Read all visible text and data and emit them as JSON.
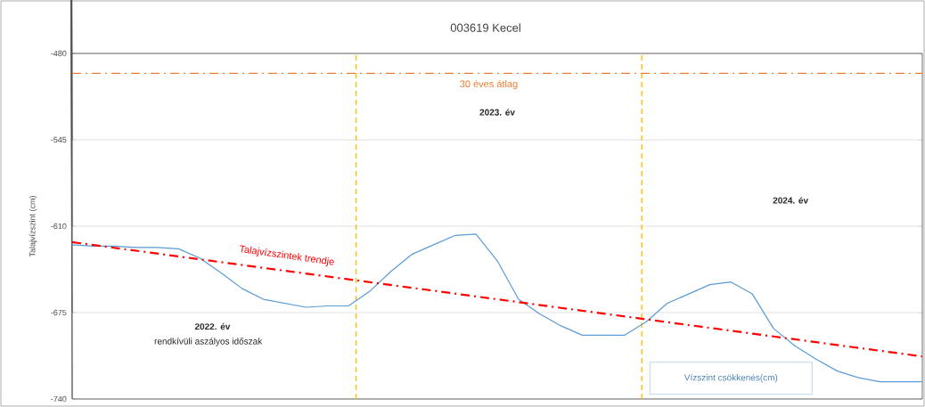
{
  "chart_data": {
    "type": "line",
    "title": "003619 Kecel",
    "ylabel": "Talajvízszint (cm)",
    "categories": [
      null,
      null,
      null,
      null,
      null,
      null,
      null,
      null,
      null,
      null,
      null,
      null,
      null,
      null,
      null,
      null,
      null,
      null,
      null,
      null,
      null,
      null,
      null,
      null,
      null,
      null,
      null,
      null,
      null,
      null,
      null,
      null,
      null,
      null,
      null,
      null,
      null,
      null,
      null,
      null,
      null
    ],
    "ylim": [
      -740,
      -480
    ],
    "yticks": [
      -480,
      -545,
      -610,
      -675,
      -740
    ],
    "grid": "y",
    "series": [
      {
        "name": "Vízszint csökkenés(cm)",
        "color": "#5b9bd5",
        "line_style": "solid",
        "values": [
          -624,
          -625,
          -625,
          -626,
          -626,
          -627,
          -634,
          -645,
          -657,
          -665,
          -668,
          -671,
          -670,
          -670,
          -659,
          -644,
          -631,
          -624,
          -617,
          -616,
          -636,
          -665,
          -676,
          -685,
          -692,
          -692,
          -692,
          -682,
          -668,
          -661,
          -654,
          -652,
          -661,
          -687,
          -700,
          -710,
          -719,
          -724,
          -727,
          -727,
          -727
        ]
      },
      {
        "name": "Talajvízszintek trendje",
        "type": "line",
        "color": "#ff0000",
        "line_style": "dashdot",
        "values": [
          -622,
          null,
          null,
          null,
          null,
          null,
          null,
          null,
          null,
          null,
          null,
          null,
          null,
          null,
          null,
          null,
          null,
          null,
          null,
          null,
          null,
          null,
          null,
          null,
          null,
          null,
          null,
          null,
          null,
          null,
          null,
          null,
          null,
          null,
          null,
          null,
          null,
          null,
          null,
          null,
          -708
        ]
      }
    ],
    "ref_lines": [
      {
        "axis": "y",
        "value": -495,
        "label": "30 éves átlag",
        "color": "#ed7d31",
        "line_style": "dashdot"
      }
    ],
    "annotations": [
      "2022. év",
      "rendkívüli aszályos időszak",
      "2023. év",
      "2024. év"
    ]
  }
}
